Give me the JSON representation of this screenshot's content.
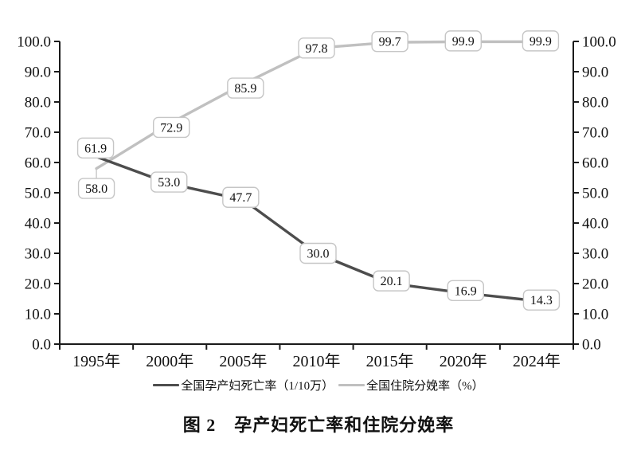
{
  "chart_data": {
    "type": "line",
    "title": "图 2　孕产妇死亡率和住院分娩率",
    "categories": [
      "1995年",
      "2000年",
      "2005年",
      "2010年",
      "2015年",
      "2020年",
      "2024年"
    ],
    "series": [
      {
        "name": "全国孕产妇死亡率（1/10万）",
        "values": [
          61.9,
          53.0,
          47.7,
          30.0,
          20.1,
          16.9,
          14.3
        ],
        "color": "#4d4d4d"
      },
      {
        "name": "全国住院分娩率（%）",
        "values": [
          58.0,
          72.9,
          85.9,
          97.8,
          99.7,
          99.9,
          99.9
        ],
        "color": "#c0c0c0"
      }
    ],
    "data_label_decimals": 1,
    "y_axis": {
      "min": 0,
      "max": 100,
      "step": 10,
      "tick_labels": [
        "0.0",
        "10.0",
        "20.0",
        "30.0",
        "40.0",
        "50.0",
        "60.0",
        "70.0",
        "80.0",
        "90.0",
        "100.0"
      ],
      "sides": [
        "left",
        "right"
      ]
    },
    "x_axis": {
      "tick_style": "boundary"
    },
    "legend_position": "bottom",
    "grid": false,
    "axis_color": "#1a1a1a",
    "text_color": "#111111",
    "label_layout": {
      "box": {
        "width": 45,
        "height": 25,
        "radius": 6,
        "border_color": "#c6c6c6",
        "fill": "#ffffff"
      },
      "offsets": [
        [
          [
            -1,
            -11
          ],
          [
            -1,
            -2
          ],
          [
            -3,
            -3
          ],
          [
            2,
            0
          ],
          [
            2,
            -3
          ],
          [
            3,
            -3
          ],
          [
            6,
            -1
          ]
        ],
        [
          [
            0,
            25
          ],
          [
            2,
            5
          ],
          [
            3,
            5
          ],
          [
            0,
            0
          ],
          [
            0,
            -1
          ],
          [
            0,
            -1
          ],
          [
            5,
            -1
          ]
        ]
      ],
      "leaders": [
        {
          "series": 1,
          "point": 0
        }
      ]
    }
  }
}
